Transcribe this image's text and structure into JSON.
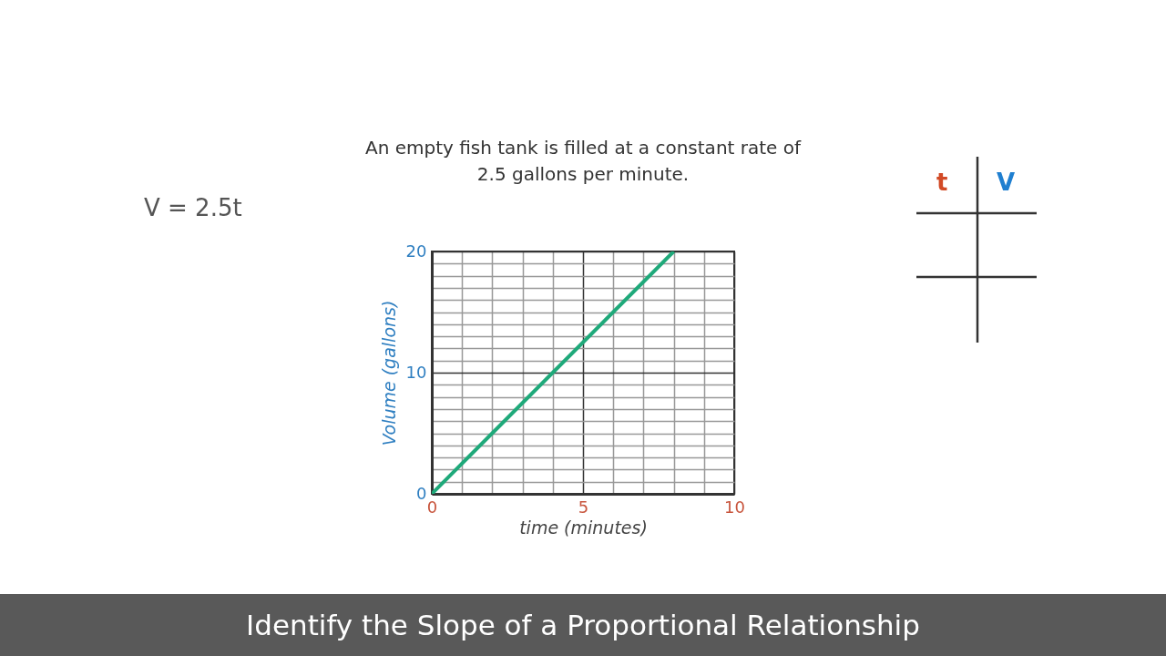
{
  "chart_data": {
    "type": "line",
    "title": "Identify the Slope of a Proportional Relationship",
    "subtitle": "An empty fish tank is filled at a constant rate of 2.5 gallons per minute.",
    "xlabel": "time (minutes)",
    "ylabel": "Volume (gallons)",
    "annotations": [
      "V = 2.5t",
      "t",
      "V"
    ],
    "x": [
      0,
      8
    ],
    "series": [
      {
        "color": "#1fa97a",
        "values": [
          0,
          20
        ]
      }
    ],
    "xlim": [
      0,
      10
    ],
    "ylim": [
      0,
      20
    ],
    "xticks": [
      0,
      {
        "value": 1,
        "label": null
      },
      {
        "value": 2,
        "label": null
      },
      {
        "value": 3,
        "label": null
      },
      {
        "value": 4,
        "label": null
      },
      5,
      {
        "value": 6,
        "label": null
      },
      {
        "value": 7,
        "label": null
      },
      {
        "value": 8,
        "label": null
      },
      {
        "value": 9,
        "label": null
      },
      10
    ],
    "yticks": [
      0,
      {
        "value": 1,
        "label": null
      },
      {
        "value": 2,
        "label": null
      },
      {
        "value": 3,
        "label": null
      },
      {
        "value": 4,
        "label": null
      },
      {
        "value": 5,
        "label": null
      },
      {
        "value": 6,
        "label": null
      },
      {
        "value": 7,
        "label": null
      },
      {
        "value": 8,
        "label": null
      },
      {
        "value": 9,
        "label": null
      },
      10,
      {
        "value": 11,
        "label": null
      },
      {
        "value": 12,
        "label": null
      },
      {
        "value": 13,
        "label": null
      },
      {
        "value": 14,
        "label": null
      },
      {
        "value": 15,
        "label": null
      },
      {
        "value": 16,
        "label": null
      },
      {
        "value": 17,
        "label": null
      },
      {
        "value": 18,
        "label": null
      },
      {
        "value": 19,
        "label": null
      },
      20
    ],
    "grid": true,
    "marker": "none",
    "line_style": "solid"
  }
}
